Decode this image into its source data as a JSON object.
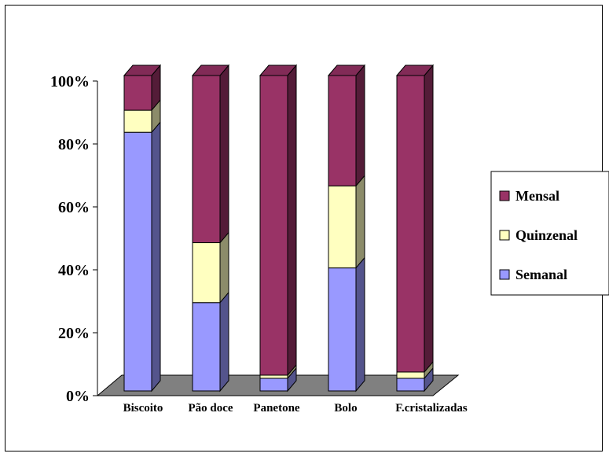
{
  "chart_data": {
    "type": "bar",
    "stacked": true,
    "percent": true,
    "three_d": true,
    "categories": [
      "Biscoito",
      "Pão doce",
      "Panetone",
      "Bolo",
      "F.cristalizadas"
    ],
    "series": [
      {
        "name": "Semanal",
        "values": [
          82,
          28,
          4,
          39,
          4
        ],
        "color": "#9999ff"
      },
      {
        "name": "Quinzenal",
        "values": [
          7,
          19,
          1,
          26,
          2
        ],
        "color": "#ffffc0"
      },
      {
        "name": "Mensal",
        "values": [
          11,
          53,
          95,
          35,
          94
        ],
        "color": "#993366"
      }
    ],
    "y_ticks": [
      "0%",
      "20%",
      "40%",
      "60%",
      "80%",
      "100%"
    ],
    "ylim": [
      0,
      100
    ],
    "legend": {
      "placement": "right",
      "order": [
        "Mensal",
        "Quinzenal",
        "Semanal"
      ]
    },
    "floor_color": "#808080"
  }
}
